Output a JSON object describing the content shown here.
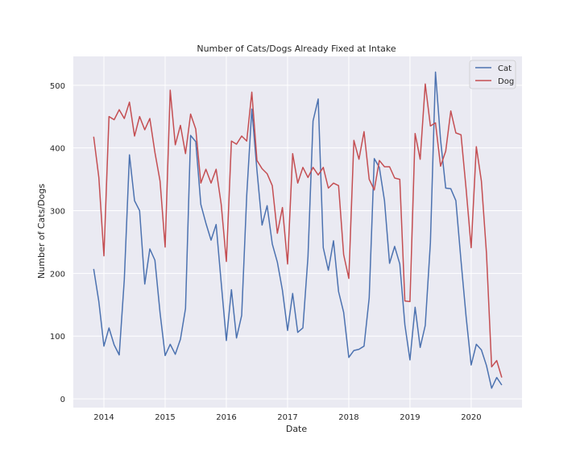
{
  "chart_data": {
    "type": "line",
    "title": "Number of Cats/Dogs Already Fixed at Intake",
    "xlabel": "Date",
    "ylabel": "Number of Cats/Dogs",
    "x_range": [
      2013.5,
      2020.83
    ],
    "ylim": [
      -14,
      546
    ],
    "x_ticks": [
      2014,
      2015,
      2016,
      2017,
      2018,
      2019,
      2020
    ],
    "x_tick_labels": [
      "2014",
      "2015",
      "2016",
      "2017",
      "2018",
      "2019",
      "2020"
    ],
    "y_ticks": [
      0,
      100,
      200,
      300,
      400,
      500
    ],
    "y_tick_labels": [
      "0",
      "100",
      "200",
      "300",
      "400",
      "500"
    ],
    "grid": true,
    "legend_position": "top-right",
    "colors": {
      "background": "#eaeaf2",
      "grid": "#ffffff",
      "Cat": "#4c72b0",
      "Dog": "#c44e52"
    },
    "series": [
      {
        "name": "Cat",
        "x": [
          "2013-11",
          "2013-12",
          "2014-01",
          "2014-02",
          "2014-03",
          "2014-04",
          "2014-05",
          "2014-06",
          "2014-07",
          "2014-08",
          "2014-09",
          "2014-10",
          "2014-11",
          "2014-12",
          "2015-01",
          "2015-02",
          "2015-03",
          "2015-04",
          "2015-05",
          "2015-06",
          "2015-07",
          "2015-08",
          "2015-09",
          "2015-10",
          "2015-11",
          "2015-12",
          "2016-01",
          "2016-02",
          "2016-03",
          "2016-04",
          "2016-05",
          "2016-06",
          "2016-07",
          "2016-08",
          "2016-09",
          "2016-10",
          "2016-11",
          "2016-12",
          "2017-01",
          "2017-02",
          "2017-03",
          "2017-04",
          "2017-05",
          "2017-06",
          "2017-07",
          "2017-08",
          "2017-09",
          "2017-10",
          "2017-11",
          "2017-12",
          "2018-01",
          "2018-02",
          "2018-03",
          "2018-04",
          "2018-05",
          "2018-06",
          "2018-07",
          "2018-08",
          "2018-09",
          "2018-10",
          "2018-11",
          "2018-12",
          "2019-01",
          "2019-02",
          "2019-03",
          "2019-04",
          "2019-05",
          "2019-06",
          "2019-07",
          "2019-08",
          "2019-09",
          "2019-10",
          "2019-11",
          "2019-12",
          "2020-01",
          "2020-02",
          "2020-03",
          "2020-04",
          "2020-05",
          "2020-06",
          "2020-07"
        ],
        "values": [
          207,
          155,
          84,
          113,
          86,
          70,
          190,
          389,
          316,
          300,
          183,
          239,
          221,
          137,
          69,
          87,
          71,
          95,
          144,
          420,
          410,
          310,
          280,
          253,
          278,
          185,
          93,
          174,
          97,
          133,
          325,
          462,
          364,
          277,
          308,
          247,
          218,
          173,
          109,
          168,
          106,
          113,
          226,
          443,
          478,
          241,
          205,
          252,
          171,
          138,
          66,
          77,
          79,
          84,
          161,
          383,
          369,
          316,
          216,
          243,
          215,
          118,
          62,
          146,
          82,
          117,
          249,
          521,
          413,
          336,
          335,
          316,
          220,
          131,
          54,
          87,
          78,
          53,
          17,
          34,
          22
        ]
      },
      {
        "name": "Dog",
        "x": [
          "2013-11",
          "2013-12",
          "2014-01",
          "2014-02",
          "2014-03",
          "2014-04",
          "2014-05",
          "2014-06",
          "2014-07",
          "2014-08",
          "2014-09",
          "2014-10",
          "2014-11",
          "2014-12",
          "2015-01",
          "2015-02",
          "2015-03",
          "2015-04",
          "2015-05",
          "2015-06",
          "2015-07",
          "2015-08",
          "2015-09",
          "2015-10",
          "2015-11",
          "2015-12",
          "2016-01",
          "2016-02",
          "2016-03",
          "2016-04",
          "2016-05",
          "2016-06",
          "2016-07",
          "2016-08",
          "2016-09",
          "2016-10",
          "2016-11",
          "2016-12",
          "2017-01",
          "2017-02",
          "2017-03",
          "2017-04",
          "2017-05",
          "2017-06",
          "2017-07",
          "2017-08",
          "2017-09",
          "2017-10",
          "2017-11",
          "2017-12",
          "2018-01",
          "2018-02",
          "2018-03",
          "2018-04",
          "2018-05",
          "2018-06",
          "2018-07",
          "2018-08",
          "2018-09",
          "2018-10",
          "2018-11",
          "2018-12",
          "2019-01",
          "2019-02",
          "2019-03",
          "2019-04",
          "2019-05",
          "2019-06",
          "2019-07",
          "2019-08",
          "2019-09",
          "2019-10",
          "2019-11",
          "2019-12",
          "2020-01",
          "2020-02",
          "2020-03",
          "2020-04",
          "2020-05",
          "2020-06",
          "2020-07"
        ],
        "values": [
          418,
          353,
          228,
          450,
          445,
          461,
          447,
          473,
          419,
          450,
          429,
          447,
          393,
          347,
          242,
          492,
          405,
          436,
          391,
          454,
          430,
          344,
          366,
          344,
          366,
          310,
          219,
          411,
          406,
          419,
          411,
          489,
          380,
          367,
          359,
          340,
          264,
          305,
          215,
          391,
          344,
          369,
          353,
          369,
          357,
          369,
          336,
          344,
          340,
          230,
          192,
          412,
          382,
          426,
          350,
          333,
          380,
          370,
          370,
          352,
          350,
          156,
          155,
          423,
          382,
          502,
          435,
          440,
          371,
          395,
          459,
          424,
          421,
          335,
          241,
          402,
          347,
          232,
          51,
          61,
          34
        ]
      }
    ]
  }
}
